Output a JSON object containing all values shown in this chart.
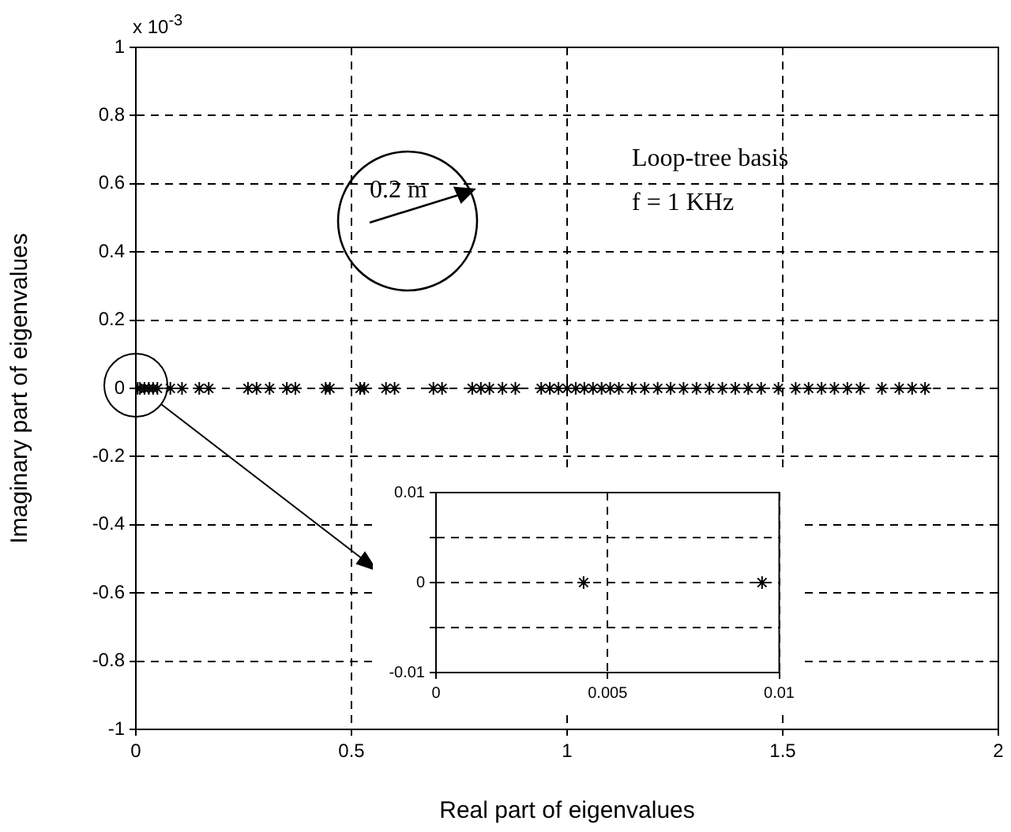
{
  "chart_data": [
    {
      "type": "scatter",
      "xlabel": "Real part of eigenvalues",
      "ylabel": "Imaginary part of eigenvalues",
      "color": "#000000",
      "marker": "cross",
      "grid": true,
      "x": [
        0.0043,
        0.0095,
        0.02,
        0.03,
        0.04,
        0.05,
        0.08,
        0.107,
        0.147,
        0.169,
        0.26,
        0.28,
        0.31,
        0.35,
        0.37,
        0.44,
        0.45,
        0.52,
        0.53,
        0.58,
        0.6,
        0.69,
        0.71,
        0.78,
        0.8,
        0.82,
        0.85,
        0.88,
        0.94,
        0.96,
        0.98,
        1.0,
        1.02,
        1.04,
        1.06,
        1.08,
        1.1,
        1.12,
        1.15,
        1.18,
        1.21,
        1.24,
        1.27,
        1.3,
        1.33,
        1.36,
        1.39,
        1.42,
        1.45,
        1.49,
        1.53,
        1.56,
        1.59,
        1.62,
        1.65,
        1.68,
        1.73,
        1.77,
        1.8,
        1.83
      ],
      "values": [
        0,
        0,
        0,
        0,
        0,
        0,
        0,
        0,
        0,
        0,
        0,
        0,
        0,
        0,
        0,
        0,
        0,
        0,
        0,
        0,
        0,
        0,
        0,
        0,
        0,
        0,
        0,
        0,
        0,
        0,
        0,
        0,
        0,
        0,
        0,
        0,
        0,
        0,
        0,
        0,
        0,
        0,
        0,
        0,
        0,
        0,
        0,
        0,
        0,
        0,
        0,
        0,
        0,
        0,
        0,
        0,
        0,
        0,
        0,
        0
      ],
      "xlim": [
        0,
        2
      ],
      "xticks": [
        0,
        0.5,
        1,
        1.5,
        2
      ],
      "ylim": [
        -1,
        1
      ],
      "yticks": [
        -1,
        -0.8,
        -0.6,
        -0.4,
        -0.2,
        0,
        0.2,
        0.4,
        0.6,
        0.8,
        1
      ],
      "annotations": [
        "Loop-tree basis",
        "f = 1 KHz",
        "0.2 m",
        "x 10$^{-3}$"
      ]
    },
    {
      "type": "scatter",
      "color": "#000000",
      "marker": "cross",
      "grid": true,
      "x": [
        0.0043,
        0.0095
      ],
      "values": [
        0,
        0
      ],
      "xlim": [
        0,
        0.01
      ],
      "xticks": [
        0,
        0.005,
        0.01
      ],
      "ylim": [
        -0.01,
        0.01
      ],
      "yticks": [
        -0.01,
        {
          "value": -0.005,
          "label": null
        },
        0,
        {
          "value": 0.005,
          "label": null
        },
        0.01
      ]
    }
  ]
}
